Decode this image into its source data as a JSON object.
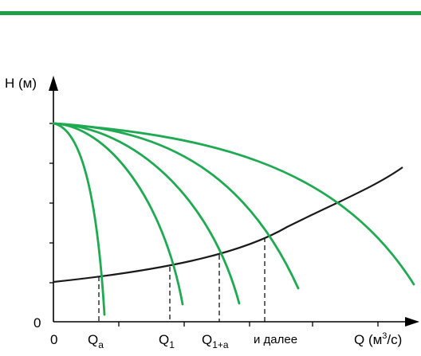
{
  "header": {
    "bar_color": "#1f9e4a"
  },
  "colors": {
    "pump_curve": "#1faa52",
    "system_curve": "#1a1a1a",
    "axis": "#000000"
  },
  "axes": {
    "y_label": "H (м)",
    "x_label_main": "Q (м",
    "x_label_sup": "3",
    "x_label_tail": "/с)",
    "y_origin_label": "0",
    "x_origin_label": "0"
  },
  "markers": {
    "qa": {
      "main": "Q",
      "sub": "a"
    },
    "q1": {
      "main": "Q",
      "sub": "1"
    },
    "q1a": {
      "main": "Q",
      "sub": "1+a"
    },
    "etc": "и далее"
  }
}
